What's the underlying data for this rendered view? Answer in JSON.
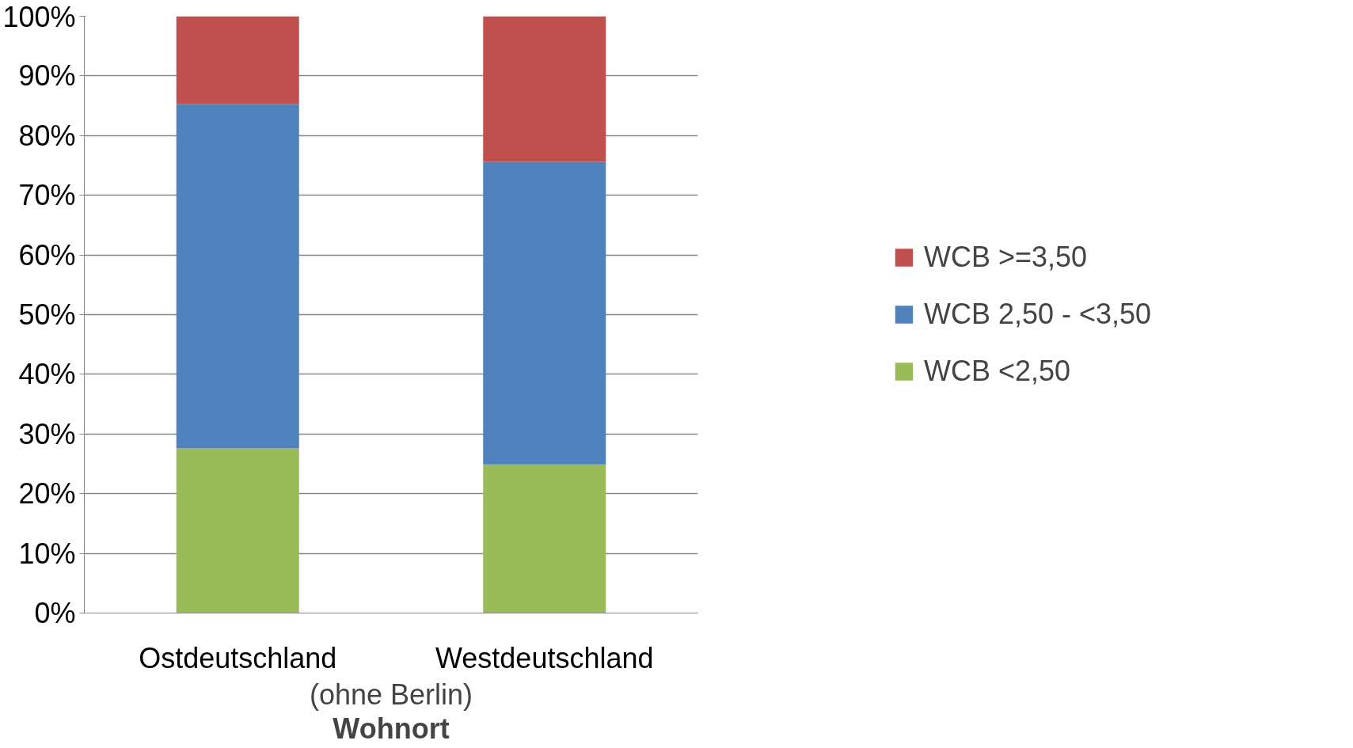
{
  "chart_data": {
    "type": "bar",
    "stacked": true,
    "categories": [
      "Ostdeutschland",
      "Westdeutschland"
    ],
    "series": [
      {
        "name": "WCB <2,50",
        "color": "#9bbb59",
        "values": [
          27.6,
          24.9
        ]
      },
      {
        "name": "WCB 2,50 - <3,50",
        "color": "#4f81bd",
        "values": [
          57.7,
          50.7
        ]
      },
      {
        "name": "WCB >=3,50",
        "color": "#c0504d",
        "values": [
          14.7,
          24.4
        ]
      }
    ],
    "xlabel": "Wohnort",
    "annotations": [
      "(ohne Berlin)"
    ],
    "ylim": [
      0,
      100
    ],
    "yticks": [
      {
        "value": 0,
        "label": "0%"
      },
      {
        "value": 10,
        "label": "10%"
      },
      {
        "value": 20,
        "label": "20%"
      },
      {
        "value": 30,
        "label": "30%"
      },
      {
        "value": 40,
        "label": "40%"
      },
      {
        "value": 50,
        "label": "50%"
      },
      {
        "value": 60,
        "label": "60%"
      },
      {
        "value": 70,
        "label": "70%"
      },
      {
        "value": 80,
        "label": "80%"
      },
      {
        "value": 90,
        "label": "90%"
      },
      {
        "value": 100,
        "label": "100%"
      }
    ],
    "grid": "y",
    "legend": "right"
  }
}
